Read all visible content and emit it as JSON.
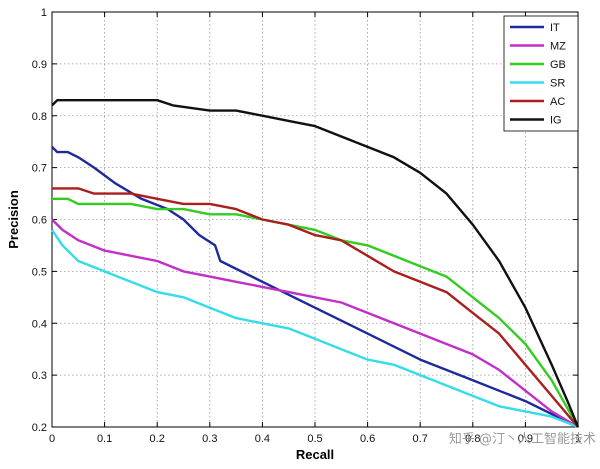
{
  "chart_data": {
    "type": "line",
    "title": "",
    "xlabel": "Recall",
    "ylabel": "Precision",
    "xlim": [
      0,
      1
    ],
    "ylim": [
      0.2,
      1
    ],
    "x_ticks": [
      0,
      0.1,
      0.2,
      0.3,
      0.4,
      0.5,
      0.6,
      0.7,
      0.8,
      0.9,
      1
    ],
    "x_tick_labels": [
      "0",
      "0.1",
      "0.2",
      "0.3",
      "0.4",
      "0.5",
      "0.6",
      "0.7",
      "0.8",
      "0.9",
      "1"
    ],
    "y_ticks": [
      0.2,
      0.3,
      0.4,
      0.5,
      0.6,
      0.7,
      0.8,
      0.9,
      1
    ],
    "y_tick_labels": [
      "0.2",
      "0.3",
      "0.4",
      "0.5",
      "0.6",
      "0.7",
      "0.8",
      "0.9",
      "1"
    ],
    "grid": true,
    "legend_position": "top-right",
    "watermark": "知乎 @汀丶人工智能技术",
    "series": [
      {
        "name": "IT",
        "color": "#1f2a9a",
        "points": [
          [
            0,
            0.74
          ],
          [
            0.01,
            0.73
          ],
          [
            0.03,
            0.73
          ],
          [
            0.05,
            0.72
          ],
          [
            0.08,
            0.7
          ],
          [
            0.12,
            0.67
          ],
          [
            0.17,
            0.64
          ],
          [
            0.22,
            0.62
          ],
          [
            0.25,
            0.6
          ],
          [
            0.28,
            0.57
          ],
          [
            0.31,
            0.55
          ],
          [
            0.32,
            0.52
          ],
          [
            0.4,
            0.48
          ],
          [
            0.5,
            0.43
          ],
          [
            0.6,
            0.38
          ],
          [
            0.7,
            0.33
          ],
          [
            0.8,
            0.29
          ],
          [
            0.9,
            0.25
          ],
          [
            1.0,
            0.2
          ]
        ]
      },
      {
        "name": "MZ",
        "color": "#c030c8",
        "points": [
          [
            0,
            0.6
          ],
          [
            0.02,
            0.58
          ],
          [
            0.05,
            0.56
          ],
          [
            0.1,
            0.54
          ],
          [
            0.15,
            0.53
          ],
          [
            0.2,
            0.52
          ],
          [
            0.25,
            0.5
          ],
          [
            0.3,
            0.49
          ],
          [
            0.35,
            0.48
          ],
          [
            0.4,
            0.47
          ],
          [
            0.45,
            0.46
          ],
          [
            0.5,
            0.45
          ],
          [
            0.55,
            0.44
          ],
          [
            0.6,
            0.42
          ],
          [
            0.65,
            0.4
          ],
          [
            0.7,
            0.38
          ],
          [
            0.75,
            0.36
          ],
          [
            0.8,
            0.34
          ],
          [
            0.85,
            0.31
          ],
          [
            0.9,
            0.27
          ],
          [
            0.95,
            0.23
          ],
          [
            1.0,
            0.2
          ]
        ]
      },
      {
        "name": "GB",
        "color": "#33cc22",
        "points": [
          [
            0,
            0.64
          ],
          [
            0.03,
            0.64
          ],
          [
            0.05,
            0.63
          ],
          [
            0.1,
            0.63
          ],
          [
            0.15,
            0.63
          ],
          [
            0.2,
            0.62
          ],
          [
            0.25,
            0.62
          ],
          [
            0.3,
            0.61
          ],
          [
            0.35,
            0.61
          ],
          [
            0.4,
            0.6
          ],
          [
            0.45,
            0.59
          ],
          [
            0.5,
            0.58
          ],
          [
            0.55,
            0.56
          ],
          [
            0.6,
            0.55
          ],
          [
            0.65,
            0.53
          ],
          [
            0.7,
            0.51
          ],
          [
            0.75,
            0.49
          ],
          [
            0.8,
            0.45
          ],
          [
            0.85,
            0.41
          ],
          [
            0.9,
            0.36
          ],
          [
            0.95,
            0.29
          ],
          [
            1.0,
            0.2
          ]
        ]
      },
      {
        "name": "SR",
        "color": "#33dde8",
        "points": [
          [
            0,
            0.58
          ],
          [
            0.02,
            0.55
          ],
          [
            0.05,
            0.52
          ],
          [
            0.1,
            0.5
          ],
          [
            0.15,
            0.48
          ],
          [
            0.2,
            0.46
          ],
          [
            0.25,
            0.45
          ],
          [
            0.3,
            0.43
          ],
          [
            0.35,
            0.41
          ],
          [
            0.4,
            0.4
          ],
          [
            0.45,
            0.39
          ],
          [
            0.5,
            0.37
          ],
          [
            0.55,
            0.35
          ],
          [
            0.6,
            0.33
          ],
          [
            0.65,
            0.32
          ],
          [
            0.7,
            0.3
          ],
          [
            0.75,
            0.28
          ],
          [
            0.8,
            0.26
          ],
          [
            0.85,
            0.24
          ],
          [
            0.9,
            0.23
          ],
          [
            0.95,
            0.22
          ],
          [
            1.0,
            0.2
          ]
        ]
      },
      {
        "name": "AC",
        "color": "#aa1e1e",
        "points": [
          [
            0,
            0.66
          ],
          [
            0.05,
            0.66
          ],
          [
            0.08,
            0.65
          ],
          [
            0.15,
            0.65
          ],
          [
            0.2,
            0.64
          ],
          [
            0.25,
            0.63
          ],
          [
            0.3,
            0.63
          ],
          [
            0.35,
            0.62
          ],
          [
            0.4,
            0.6
          ],
          [
            0.45,
            0.59
          ],
          [
            0.5,
            0.57
          ],
          [
            0.55,
            0.56
          ],
          [
            0.6,
            0.53
          ],
          [
            0.65,
            0.5
          ],
          [
            0.7,
            0.48
          ],
          [
            0.75,
            0.46
          ],
          [
            0.8,
            0.42
          ],
          [
            0.85,
            0.38
          ],
          [
            0.9,
            0.32
          ],
          [
            0.95,
            0.26
          ],
          [
            1.0,
            0.2
          ]
        ]
      },
      {
        "name": "IG",
        "color": "#111111",
        "points": [
          [
            0,
            0.82
          ],
          [
            0.01,
            0.83
          ],
          [
            0.05,
            0.83
          ],
          [
            0.1,
            0.83
          ],
          [
            0.15,
            0.83
          ],
          [
            0.2,
            0.83
          ],
          [
            0.23,
            0.82
          ],
          [
            0.3,
            0.81
          ],
          [
            0.35,
            0.81
          ],
          [
            0.4,
            0.8
          ],
          [
            0.45,
            0.79
          ],
          [
            0.5,
            0.78
          ],
          [
            0.55,
            0.76
          ],
          [
            0.6,
            0.74
          ],
          [
            0.65,
            0.72
          ],
          [
            0.7,
            0.69
          ],
          [
            0.75,
            0.65
          ],
          [
            0.8,
            0.59
          ],
          [
            0.85,
            0.52
          ],
          [
            0.9,
            0.43
          ],
          [
            0.95,
            0.32
          ],
          [
            0.98,
            0.25
          ],
          [
            1.0,
            0.2
          ]
        ]
      }
    ]
  }
}
